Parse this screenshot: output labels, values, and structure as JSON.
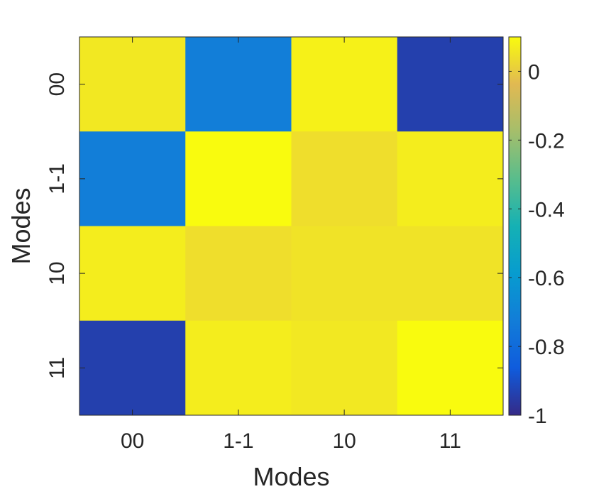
{
  "chart_data": {
    "type": "heatmap",
    "x_categories": [
      "00",
      "1-1",
      "10",
      "11"
    ],
    "y_categories": [
      "00",
      "1-1",
      "10",
      "11"
    ],
    "xlabel": "Modes",
    "ylabel": "Modes",
    "values": [
      [
        0.06,
        -0.72,
        0.08,
        -0.94
      ],
      [
        -0.72,
        0.1,
        0.04,
        0.07
      ],
      [
        0.07,
        0.04,
        0.05,
        0.05
      ],
      [
        -0.94,
        0.07,
        0.06,
        0.1
      ]
    ],
    "colorbar": {
      "range": [
        -1,
        0.1
      ],
      "ticks": [
        0,
        -0.2,
        -0.4,
        -0.6,
        -0.8,
        -1
      ],
      "tick_labels": [
        "0",
        "-0.2",
        "-0.4",
        "-0.6",
        "-0.8",
        "-1"
      ],
      "colormap": "parula"
    },
    "grid": false
  }
}
